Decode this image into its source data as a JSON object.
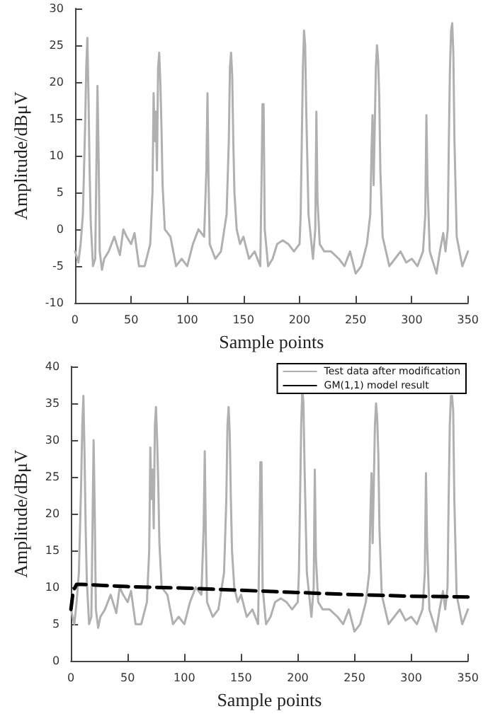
{
  "chart_data": [
    {
      "type": "line",
      "xlabel": "Sample points",
      "ylabel": "Amplitude/dBμV",
      "xlim": [
        0,
        350
      ],
      "xticks": [
        0,
        50,
        100,
        150,
        200,
        250,
        300,
        350
      ],
      "ylim": [
        -10,
        30
      ],
      "yticks": [
        -10,
        -5,
        0,
        5,
        10,
        15,
        20,
        25,
        30
      ],
      "grid": false,
      "legend": false,
      "marker": "none",
      "series": [
        {
          "color": "#b0b0b0",
          "line_style": "solid",
          "x": [
            0,
            3,
            5,
            7,
            8,
            9,
            10,
            11,
            12,
            13,
            14,
            16,
            18,
            19,
            20,
            21,
            22,
            24,
            26,
            30,
            35,
            40,
            43,
            46,
            50,
            53,
            57,
            62,
            67,
            69,
            70,
            71,
            72,
            73,
            74,
            75,
            76,
            77,
            78,
            80,
            85,
            90,
            95,
            100,
            105,
            110,
            115,
            117,
            118,
            119,
            120,
            125,
            130,
            135,
            137,
            138,
            139,
            140,
            141,
            142,
            144,
            147,
            150,
            155,
            160,
            165,
            166,
            167,
            168,
            169,
            172,
            176,
            180,
            185,
            190,
            195,
            200,
            201,
            202,
            203,
            204,
            205,
            206,
            208,
            212,
            214,
            215,
            216,
            218,
            222,
            228,
            235,
            240,
            245,
            250,
            255,
            260,
            263,
            264,
            265,
            266,
            267,
            268,
            269,
            270,
            271,
            272,
            274,
            280,
            285,
            290,
            295,
            300,
            305,
            310,
            312,
            313,
            314,
            316,
            320,
            322,
            325,
            328,
            330,
            332,
            333,
            334,
            335,
            336,
            337,
            338,
            340,
            345,
            350
          ],
          "values": [
            -3,
            -4.5,
            -2,
            2,
            8,
            14,
            22,
            26,
            18,
            8,
            1,
            -5,
            -4,
            8,
            19.5,
            10,
            -3,
            -5.5,
            -4,
            -3,
            -1,
            -3.5,
            0,
            -1,
            -2,
            -0.5,
            -5,
            -5,
            -2,
            5,
            18.5,
            12,
            16,
            8,
            22,
            24,
            20,
            14,
            6,
            0,
            -1,
            -5,
            -4,
            -5,
            -2,
            0,
            -1,
            8,
            18.5,
            6,
            -2,
            -4,
            -3,
            2,
            12,
            22,
            24,
            21,
            12,
            5,
            0,
            -2,
            -1,
            -4,
            -3,
            -5,
            5,
            17,
            17,
            0,
            -5,
            -4,
            -2,
            -1.5,
            -2,
            -3,
            -2,
            2,
            12,
            22,
            27,
            25,
            16,
            2,
            -4,
            0,
            16,
            4,
            -2,
            -3,
            -3,
            -4,
            -5,
            -3,
            -6,
            -5,
            -2,
            2,
            10,
            15.5,
            6,
            14,
            22,
            25,
            23,
            18,
            8,
            -1,
            -5,
            -4,
            -3,
            -4.5,
            -4,
            -5,
            -3,
            2,
            15.5,
            6,
            -3,
            -5,
            -6,
            -3,
            -0.5,
            -3,
            0,
            12,
            22,
            27,
            28,
            24,
            12,
            -1,
            -5,
            -3
          ]
        }
      ]
    },
    {
      "type": "line",
      "xlabel": "Sample points",
      "ylabel": "Amplitude/dBμV",
      "xlim": [
        0,
        350
      ],
      "xticks": [
        0,
        50,
        100,
        150,
        200,
        250,
        300,
        350
      ],
      "ylim": [
        0,
        40
      ],
      "yticks": [
        0,
        5,
        10,
        15,
        20,
        25,
        30,
        35,
        40
      ],
      "grid": false,
      "legend": "top right",
      "marker": "none",
      "series": [
        {
          "name": "Test data after modification",
          "color": "#b0b0b0",
          "line_style": "solid",
          "x": [
            0,
            3,
            5,
            7,
            8,
            9,
            10,
            11,
            12,
            13,
            14,
            16,
            18,
            19,
            20,
            21,
            22,
            24,
            26,
            30,
            35,
            40,
            43,
            46,
            50,
            53,
            57,
            62,
            67,
            69,
            70,
            71,
            72,
            73,
            74,
            75,
            76,
            77,
            78,
            80,
            85,
            90,
            95,
            100,
            105,
            110,
            115,
            117,
            118,
            119,
            120,
            125,
            130,
            135,
            137,
            138,
            139,
            140,
            141,
            142,
            144,
            147,
            150,
            155,
            160,
            165,
            166,
            167,
            168,
            169,
            172,
            176,
            180,
            185,
            190,
            195,
            200,
            201,
            202,
            203,
            204,
            205,
            206,
            208,
            212,
            214,
            215,
            216,
            218,
            222,
            228,
            235,
            240,
            245,
            250,
            255,
            260,
            263,
            264,
            265,
            266,
            267,
            268,
            269,
            270,
            271,
            272,
            274,
            280,
            285,
            290,
            295,
            300,
            305,
            310,
            312,
            313,
            314,
            316,
            320,
            322,
            325,
            328,
            330,
            332,
            333,
            334,
            335,
            336,
            337,
            338,
            340,
            345,
            350
          ],
          "values": [
            7,
            5,
            8,
            12,
            18,
            24,
            32,
            36,
            28,
            18,
            11,
            5,
            6,
            18,
            30,
            20,
            7,
            4.5,
            6,
            7,
            9,
            6.5,
            10,
            9,
            8,
            9.5,
            5,
            5,
            8,
            15,
            29,
            22,
            26,
            18,
            32,
            34.5,
            30,
            24,
            16,
            10,
            9,
            5,
            6,
            5,
            8,
            10,
            9,
            18,
            28.5,
            16,
            8,
            6,
            7,
            12,
            22,
            32,
            34.5,
            31,
            22,
            15,
            10,
            8,
            9,
            6,
            7,
            5,
            15,
            27,
            27,
            10,
            5,
            6,
            8,
            8.5,
            8,
            7,
            8,
            12,
            22,
            32,
            37,
            35,
            26,
            12,
            6,
            10,
            26,
            14,
            8,
            7,
            7,
            6,
            5,
            7,
            4,
            5,
            8,
            12,
            20,
            25.5,
            16,
            24,
            32,
            35,
            33,
            28,
            18,
            9,
            5,
            6,
            7,
            5.5,
            6,
            5,
            7,
            12,
            25.5,
            16,
            7,
            5,
            4,
            7,
            9.5,
            7,
            10,
            22,
            32,
            36,
            36,
            34,
            22,
            9,
            5,
            7
          ]
        },
        {
          "name": "GM(1,1) model result",
          "color": "#000000",
          "line_style": "dashed",
          "x": [
            0,
            2,
            5,
            10,
            50,
            100,
            150,
            200,
            250,
            300,
            350
          ],
          "values": [
            7,
            9.5,
            10.4,
            10.4,
            10.1,
            9.9,
            9.6,
            9.3,
            9,
            8.8,
            8.7
          ]
        }
      ]
    }
  ]
}
